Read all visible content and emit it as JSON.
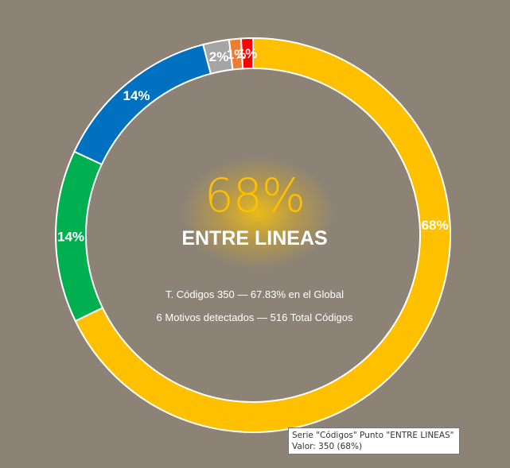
{
  "chart_data": {
    "type": "pie",
    "style": "doughnut",
    "series_name": "Códigos",
    "categories": [
      "ENTRE LINEAS",
      "",
      "",
      "",
      "",
      ""
    ],
    "values": [
      350,
      73,
      72,
      11,
      5,
      5
    ],
    "data_labels": [
      "68%",
      "14%",
      "14%",
      "2%",
      "1%",
      "1%"
    ],
    "colors": [
      "#ffc000",
      "#00b050",
      "#0070c0",
      "#a5a5a5",
      "#ed7d31",
      "#ff0000"
    ]
  },
  "center": {
    "percent": "68%",
    "name": "ENTRE LINEAS",
    "line1": "T. Códigos 350 — 67.83% en el Global",
    "line2": "6 Motivos detectados — 516 Total Códigos"
  },
  "tooltip": {
    "line1": "Serie \"Códigos\" Punto \"ENTRE LINEAS\"",
    "line2": "Valor: 350 (68%)"
  }
}
